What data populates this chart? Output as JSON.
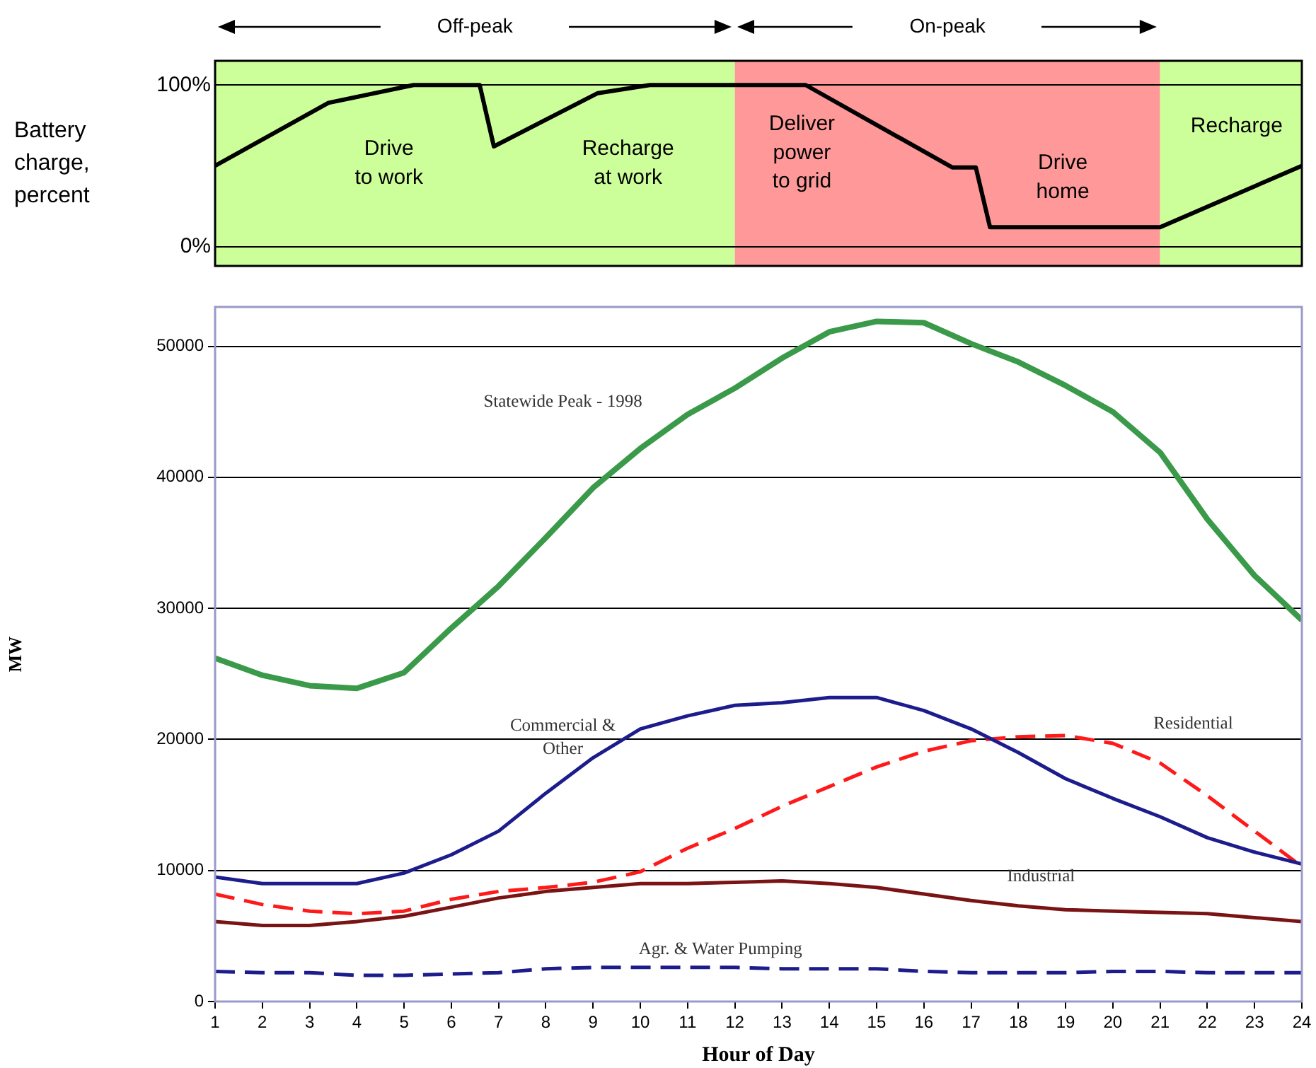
{
  "chart_data": [
    {
      "type": "line",
      "ylabel": "Battery charge, percent",
      "xlim": [
        1,
        24
      ],
      "ylim": [
        -12,
        115
      ],
      "yticks": [
        {
          "value": 0,
          "label": "0%"
        },
        {
          "value": 100,
          "label": "100%"
        }
      ],
      "grid": "y",
      "legend": false,
      "marker": "none",
      "tick_labels": "y",
      "bands": [
        {
          "axis": "x",
          "from": 1,
          "to": 12,
          "label": "Off-peak",
          "color": "#ccff99"
        },
        {
          "axis": "x",
          "from": 12,
          "to": 21,
          "label": "On-peak",
          "color": "#ff9999"
        },
        {
          "axis": "x",
          "from": 21,
          "to": 24,
          "label": null,
          "color": "#ccff99"
        }
      ],
      "series": [
        {
          "color": "#000000",
          "line_style": "solid",
          "x": [
            1,
            3.4,
            5.2,
            6.6,
            6.9,
            9.1,
            10.2,
            13.5,
            16.6,
            17.1,
            17.4,
            21,
            24
          ],
          "values": [
            50,
            89,
            100,
            100,
            62,
            95,
            100,
            100,
            49,
            49,
            12,
            12,
            50
          ]
        }
      ],
      "annotations": [
        "Drive\nto work",
        "Recharge\nat work",
        "Deliver\npower\nto grid",
        "Drive\nhome",
        "Recharge"
      ]
    },
    {
      "type": "line",
      "xlabel": "Hour of Day",
      "ylabel": "MW",
      "x": [
        1,
        2,
        3,
        4,
        5,
        6,
        7,
        8,
        9,
        10,
        11,
        12,
        13,
        14,
        15,
        16,
        17,
        18,
        19,
        20,
        21,
        22,
        23,
        24
      ],
      "xlim": [
        1,
        24
      ],
      "xticks": [
        1,
        2,
        3,
        4,
        5,
        6,
        7,
        8,
        9,
        10,
        11,
        12,
        13,
        14,
        15,
        16,
        17,
        18,
        19,
        20,
        21,
        22,
        23,
        24
      ],
      "ylim": [
        0,
        53000
      ],
      "yticks": [
        0,
        10000,
        20000,
        30000,
        40000,
        50000
      ],
      "grid": "y",
      "legend": false,
      "marker": "none",
      "series": [
        {
          "name": "Statewide Peak - 1998",
          "color": "#3a9a4a",
          "line_style": "solid",
          "values": [
            26200,
            24900,
            24100,
            23900,
            25100,
            28500,
            31700,
            35400,
            39200,
            42200,
            44800,
            46800,
            49100,
            51100,
            51900,
            51800,
            50200,
            48800,
            47000,
            45000,
            41900,
            36800,
            32500,
            29100
          ]
        },
        {
          "name": "Commercial &\nOther",
          "color": "#1c1c8c",
          "line_style": "solid",
          "values": [
            9500,
            9000,
            9000,
            9000,
            9800,
            11200,
            13000,
            15900,
            18600,
            20800,
            21800,
            22600,
            22800,
            23200,
            23200,
            22200,
            20800,
            19000,
            17000,
            15500,
            14100,
            12500,
            11400,
            10500
          ]
        },
        {
          "name": "Residential",
          "color": "#ff1a1a",
          "line_style": "dashed",
          "values": [
            8200,
            7400,
            6900,
            6700,
            6900,
            7800,
            8400,
            8700,
            9100,
            9900,
            11700,
            13200,
            14900,
            16400,
            17900,
            19100,
            19900,
            20200,
            20300,
            19700,
            18200,
            15700,
            13000,
            10300
          ]
        },
        {
          "name": "Industrial",
          "color": "#7a1414",
          "line_style": "solid",
          "values": [
            6100,
            5800,
            5800,
            6100,
            6500,
            7200,
            7900,
            8400,
            8700,
            9000,
            9000,
            9100,
            9200,
            9000,
            8700,
            8200,
            7700,
            7300,
            7000,
            6900,
            6800,
            6700,
            6400,
            6100
          ]
        },
        {
          "name": "Agr. & Water Pumping",
          "color": "#1c1c8c",
          "line_style": "dashed",
          "values": [
            2300,
            2200,
            2200,
            2000,
            2000,
            2100,
            2200,
            2500,
            2600,
            2600,
            2600,
            2600,
            2500,
            2500,
            2500,
            2300,
            2200,
            2200,
            2200,
            2300,
            2300,
            2200,
            2200,
            2200
          ]
        }
      ]
    }
  ]
}
